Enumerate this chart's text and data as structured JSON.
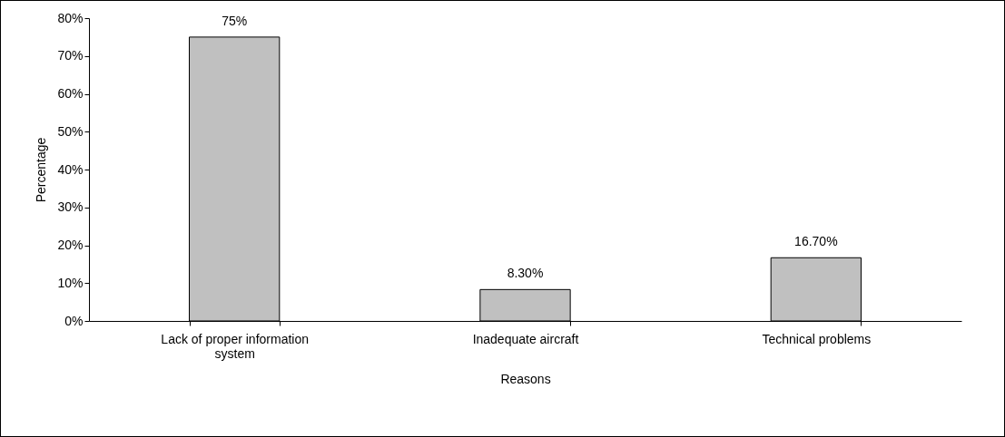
{
  "chart_data": {
    "type": "bar",
    "xlabel": "Reasons",
    "ylabel": "Percentage",
    "categories": [
      "Lack of proper information system",
      "Inadequate aircraft",
      "Technical problems"
    ],
    "values": [
      75,
      8.3,
      16.7
    ],
    "value_labels": [
      "75%",
      "8.30%",
      "16.70%"
    ],
    "color": "#c0c0c0",
    "ylim": [
      0,
      80
    ],
    "yticks": [
      {
        "value": 0,
        "label": "0%"
      },
      {
        "value": 10,
        "label": "10%"
      },
      {
        "value": 20,
        "label": "20%"
      },
      {
        "value": 30,
        "label": "30%"
      },
      {
        "value": 40,
        "label": "40%"
      },
      {
        "value": 50,
        "label": "50%"
      },
      {
        "value": 60,
        "label": "60%"
      },
      {
        "value": 70,
        "label": "70%"
      },
      {
        "value": 80,
        "label": "80%"
      }
    ]
  }
}
